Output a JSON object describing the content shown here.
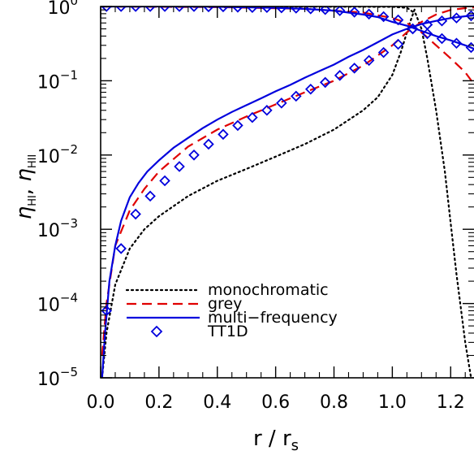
{
  "chart_data": {
    "type": "line",
    "xlabel": "r / r",
    "xlabel_sub": "s",
    "ylabel_prefix": "η",
    "ylabel_sub1": "HI",
    "ylabel_sep": ", ",
    "ylabel_sub2": "HII",
    "xlim": [
      0.0,
      1.28
    ],
    "ylim": [
      1e-05,
      1.0
    ],
    "y_scale": "log",
    "x_ticks": [
      0.0,
      0.2,
      0.4,
      0.6,
      0.8,
      1.0,
      1.2
    ],
    "x_tick_labels": [
      "0.0",
      "0.2",
      "0.4",
      "0.6",
      "0.8",
      "1.0",
      "1.2"
    ],
    "y_ticks": [
      {
        "value": 1.0,
        "base": "10",
        "exp": "0"
      },
      {
        "value": 0.1,
        "base": "10",
        "exp": "−1"
      },
      {
        "value": 0.01,
        "base": "10",
        "exp": "−2"
      },
      {
        "value": 0.001,
        "base": "10",
        "exp": "−3"
      },
      {
        "value": 0.0001,
        "base": "10",
        "exp": "−4"
      },
      {
        "value": 1e-05,
        "base": "10",
        "exp": "−5"
      }
    ],
    "legend": {
      "position": "bottom-left",
      "entries": [
        {
          "label": "monochromatic",
          "style": "dotted",
          "color": "#000000"
        },
        {
          "label": "grey",
          "style": "dashed",
          "color": "#e00000"
        },
        {
          "label": "multi−frequency",
          "style": "solid",
          "color": "#0000dd"
        },
        {
          "label": "TT1D",
          "style": "diamond",
          "color": "#0000dd"
        }
      ]
    },
    "series": [
      {
        "style": "dotted",
        "color": "#000000",
        "x": [
          0.005,
          0.02,
          0.05,
          0.1,
          0.15,
          0.2,
          0.3,
          0.4,
          0.5,
          0.6,
          0.7,
          0.8,
          0.9,
          0.95,
          1.0,
          1.03,
          1.06,
          1.08
        ],
        "y": [
          1e-05,
          4e-05,
          0.00018,
          0.00055,
          0.001,
          0.0015,
          0.0028,
          0.0045,
          0.0065,
          0.0095,
          0.014,
          0.022,
          0.04,
          0.06,
          0.12,
          0.25,
          0.6,
          1.0
        ]
      },
      {
        "style": "dotted",
        "color": "#000000",
        "x": [
          0.0,
          0.5,
          1.0,
          1.05,
          1.08,
          1.1,
          1.12,
          1.15,
          1.18,
          1.2,
          1.22,
          1.25,
          1.27
        ],
        "y": [
          1.0,
          1.0,
          0.99,
          0.96,
          0.8,
          0.5,
          0.2,
          0.04,
          0.006,
          0.0012,
          0.00025,
          3e-05,
          1e-05
        ]
      },
      {
        "style": "dashed",
        "color": "#e00000",
        "x": [
          0.005,
          0.02,
          0.05,
          0.1,
          0.15,
          0.2,
          0.3,
          0.4,
          0.5,
          0.6,
          0.7,
          0.8,
          0.9,
          1.0,
          1.05,
          1.1,
          1.15,
          1.2,
          1.25,
          1.28
        ],
        "y": [
          2e-05,
          0.0001,
          0.0006,
          0.0018,
          0.0035,
          0.006,
          0.013,
          0.022,
          0.033,
          0.048,
          0.07,
          0.1,
          0.16,
          0.3,
          0.45,
          0.62,
          0.78,
          0.9,
          0.95,
          0.97
        ]
      },
      {
        "style": "dashed",
        "color": "#e00000",
        "x": [
          0.0,
          0.4,
          0.7,
          0.9,
          1.0,
          1.05,
          1.1,
          1.15,
          1.2,
          1.25,
          1.28
        ],
        "y": [
          1.0,
          0.98,
          0.93,
          0.83,
          0.7,
          0.6,
          0.45,
          0.3,
          0.2,
          0.13,
          0.09
        ]
      },
      {
        "style": "solid",
        "color": "#0000dd",
        "x": [
          0.005,
          0.015,
          0.03,
          0.05,
          0.07,
          0.1,
          0.13,
          0.16,
          0.2,
          0.25,
          0.3,
          0.35,
          0.4,
          0.45,
          0.5,
          0.55,
          0.6,
          0.65,
          0.7,
          0.75,
          0.8,
          0.85,
          0.9,
          0.95,
          1.0,
          1.05,
          1.1,
          1.15,
          1.2,
          1.25,
          1.28
        ],
        "y": [
          1e-05,
          4e-05,
          0.0002,
          0.0006,
          0.0013,
          0.0027,
          0.0042,
          0.006,
          0.0085,
          0.0125,
          0.017,
          0.023,
          0.03,
          0.038,
          0.047,
          0.058,
          0.072,
          0.088,
          0.11,
          0.135,
          0.165,
          0.21,
          0.26,
          0.33,
          0.42,
          0.5,
          0.58,
          0.64,
          0.7,
          0.74,
          0.76
        ]
      },
      {
        "style": "solid",
        "color": "#0000dd",
        "x": [
          0.0,
          0.2,
          0.4,
          0.6,
          0.7,
          0.8,
          0.9,
          0.95,
          1.0,
          1.05,
          1.1,
          1.15,
          1.2,
          1.25,
          1.28
        ],
        "y": [
          1.0,
          1.0,
          0.99,
          0.96,
          0.93,
          0.88,
          0.78,
          0.72,
          0.62,
          0.55,
          0.47,
          0.4,
          0.35,
          0.3,
          0.27
        ]
      }
    ],
    "markers": [
      {
        "style": "diamond",
        "color": "#0000dd",
        "x": [
          0.02,
          0.07,
          0.12,
          0.17,
          0.22,
          0.27,
          0.32,
          0.37,
          0.42,
          0.47,
          0.52,
          0.57,
          0.62,
          0.67,
          0.72,
          0.77,
          0.82,
          0.87,
          0.92,
          0.97,
          1.02,
          1.07,
          1.12,
          1.17,
          1.22,
          1.27
        ],
        "y": [
          8e-05,
          0.00055,
          0.0016,
          0.0028,
          0.0045,
          0.007,
          0.01,
          0.014,
          0.019,
          0.025,
          0.032,
          0.04,
          0.05,
          0.062,
          0.077,
          0.095,
          0.118,
          0.148,
          0.188,
          0.24,
          0.31,
          0.5,
          0.57,
          0.64,
          0.7,
          0.75
        ]
      },
      {
        "style": "diamond",
        "color": "#0000dd",
        "x": [
          0.02,
          0.07,
          0.12,
          0.17,
          0.22,
          0.27,
          0.32,
          0.37,
          0.42,
          0.47,
          0.52,
          0.57,
          0.62,
          0.67,
          0.72,
          0.77,
          0.82,
          0.87,
          0.92,
          0.97,
          1.02,
          1.07,
          1.12,
          1.17,
          1.22,
          1.27
        ],
        "y": [
          1.0,
          1.0,
          1.0,
          1.0,
          1.0,
          1.0,
          1.0,
          0.99,
          0.99,
          0.98,
          0.97,
          0.97,
          0.96,
          0.95,
          0.93,
          0.91,
          0.88,
          0.84,
          0.79,
          0.73,
          0.66,
          0.5,
          0.43,
          0.37,
          0.32,
          0.28
        ]
      }
    ]
  }
}
